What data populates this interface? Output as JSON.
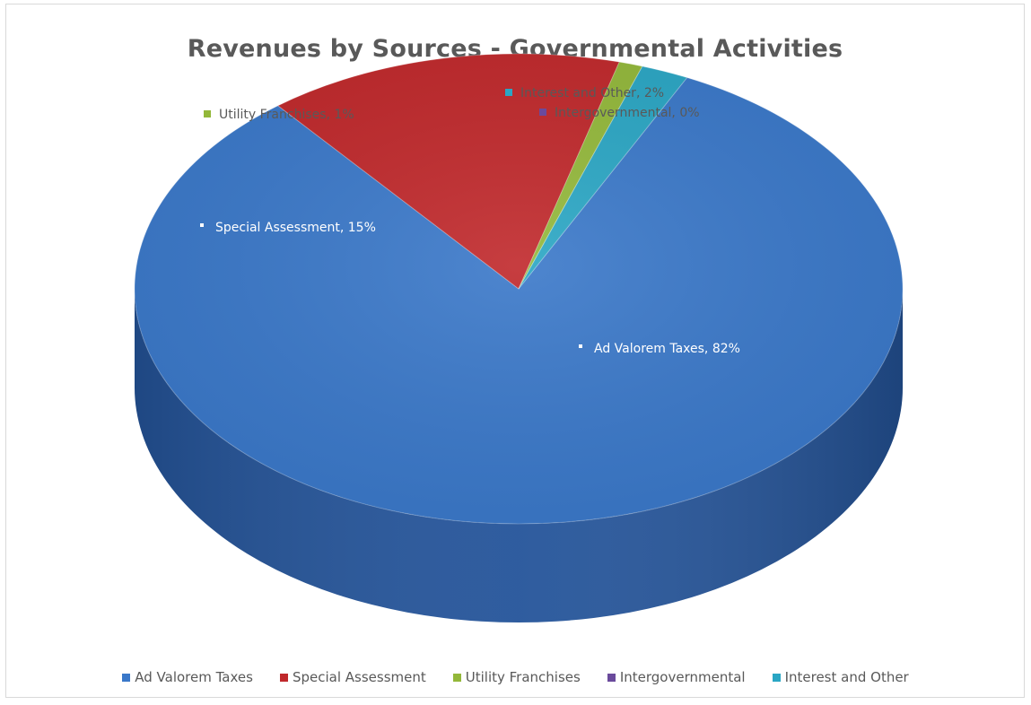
{
  "chart_data": {
    "type": "pie",
    "title": "Revenues by Sources - Governmental Activities",
    "categories": [
      "Ad Valorem Taxes",
      "Special Assessment",
      "Utility Franchises",
      "Intergovernmental",
      "Interest and Other"
    ],
    "values": [
      82,
      15,
      1,
      0,
      2
    ],
    "data_labels": [
      "Ad Valorem Taxes, 82%",
      "Special Assessment, 15%",
      "Utility Franchises, 1%",
      "Intergovernmental, 0%",
      "Interest and Other, 2%"
    ],
    "unit": "%",
    "style": "3d",
    "legend_position": "bottom"
  },
  "colors": {
    "Ad Valorem Taxes": "#3a78c9",
    "Special Assessment": "#c0282b",
    "Utility Franchises": "#93b83a",
    "Intergovernmental": "#6a4a9c",
    "Interest and Other": "#2aa6c4"
  },
  "side_colors": {
    "Ad Valorem Taxes": "#24549a",
    "Special Assessment": "#8c1c1e",
    "Utility Franchises": "#6c8a25",
    "Intergovernmental": "#4b3372",
    "Interest and Other": "#1c7a92"
  }
}
